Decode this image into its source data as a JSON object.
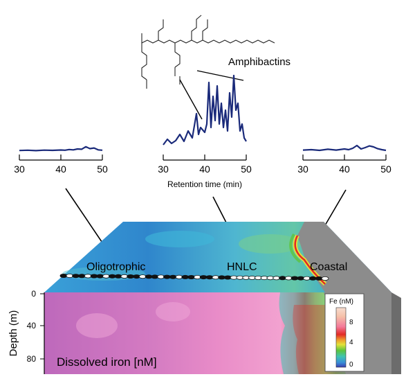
{
  "structure_label": "Amphibactins",
  "chromatograms": [
    {
      "name": "oligotrophic",
      "ticks": [
        "30",
        "40",
        "50"
      ],
      "xlabel": "",
      "trace": [
        [
          30,
          0.1
        ],
        [
          32,
          0.12
        ],
        [
          34,
          0.09
        ],
        [
          36,
          0.13
        ],
        [
          38,
          0.11
        ],
        [
          40,
          0.14
        ],
        [
          41,
          0.12
        ],
        [
          42,
          0.18
        ],
        [
          43,
          0.15
        ],
        [
          44,
          0.22
        ],
        [
          45,
          0.2
        ],
        [
          46,
          0.4
        ],
        [
          47,
          0.25
        ],
        [
          48,
          0.3
        ],
        [
          49,
          0.15
        ],
        [
          50,
          0.12
        ]
      ]
    },
    {
      "name": "hnlc",
      "ticks": [
        "30",
        "40",
        "50"
      ],
      "xlabel": "Retention time (min)",
      "trace": [
        [
          30,
          0.1
        ],
        [
          31,
          0.18
        ],
        [
          32,
          0.12
        ],
        [
          33,
          0.16
        ],
        [
          34,
          0.25
        ],
        [
          35,
          0.15
        ],
        [
          36,
          0.3
        ],
        [
          37,
          0.2
        ],
        [
          38,
          0.55
        ],
        [
          38.5,
          0.25
        ],
        [
          39,
          0.35
        ],
        [
          40,
          0.28
        ],
        [
          40.5,
          0.4
        ],
        [
          41,
          1.0
        ],
        [
          41.5,
          0.35
        ],
        [
          42,
          0.8
        ],
        [
          42.5,
          0.45
        ],
        [
          43,
          0.95
        ],
        [
          43.5,
          0.4
        ],
        [
          44,
          0.7
        ],
        [
          44.5,
          0.35
        ],
        [
          45,
          0.6
        ],
        [
          45.5,
          0.3
        ],
        [
          46,
          0.85
        ],
        [
          46.5,
          0.5
        ],
        [
          47,
          1.1
        ],
        [
          47.5,
          0.6
        ],
        [
          48,
          0.7
        ],
        [
          48.5,
          0.3
        ],
        [
          49,
          0.4
        ],
        [
          49.5,
          0.2
        ],
        [
          50,
          0.15
        ]
      ]
    },
    {
      "name": "coastal",
      "ticks": [
        "30",
        "40",
        "50"
      ],
      "xlabel": "",
      "trace": [
        [
          30,
          0.12
        ],
        [
          32,
          0.15
        ],
        [
          34,
          0.1
        ],
        [
          36,
          0.18
        ],
        [
          38,
          0.12
        ],
        [
          40,
          0.2
        ],
        [
          41,
          0.15
        ],
        [
          42,
          0.25
        ],
        [
          43,
          0.45
        ],
        [
          44,
          0.2
        ],
        [
          45,
          0.3
        ],
        [
          46,
          0.42
        ],
        [
          47,
          0.35
        ],
        [
          48,
          0.22
        ],
        [
          49,
          0.15
        ],
        [
          50,
          0.1
        ]
      ]
    }
  ],
  "regions": [
    "Oligotrophic",
    "HNLC",
    "Coastal"
  ],
  "section": {
    "ylabel": "Depth (m)",
    "depth_ticks": [
      "0",
      "40",
      "80"
    ],
    "title": "Dissolved iron [nM]"
  },
  "colorbar": {
    "title": "Fe (nM)",
    "ticks": [
      "8",
      "4",
      "0"
    ],
    "stops": [
      "#3b3fb0",
      "#3a8fd8",
      "#3fc4b0",
      "#5cc43c",
      "#e3e23a",
      "#f09a2c",
      "#e22a26",
      "#f47a9a",
      "#f5c0a8",
      "#f7ddd0"
    ]
  },
  "colors": {
    "trace": "#1a2a7a",
    "land": "#8c8c8c",
    "section_bg": "#e08ac8"
  }
}
